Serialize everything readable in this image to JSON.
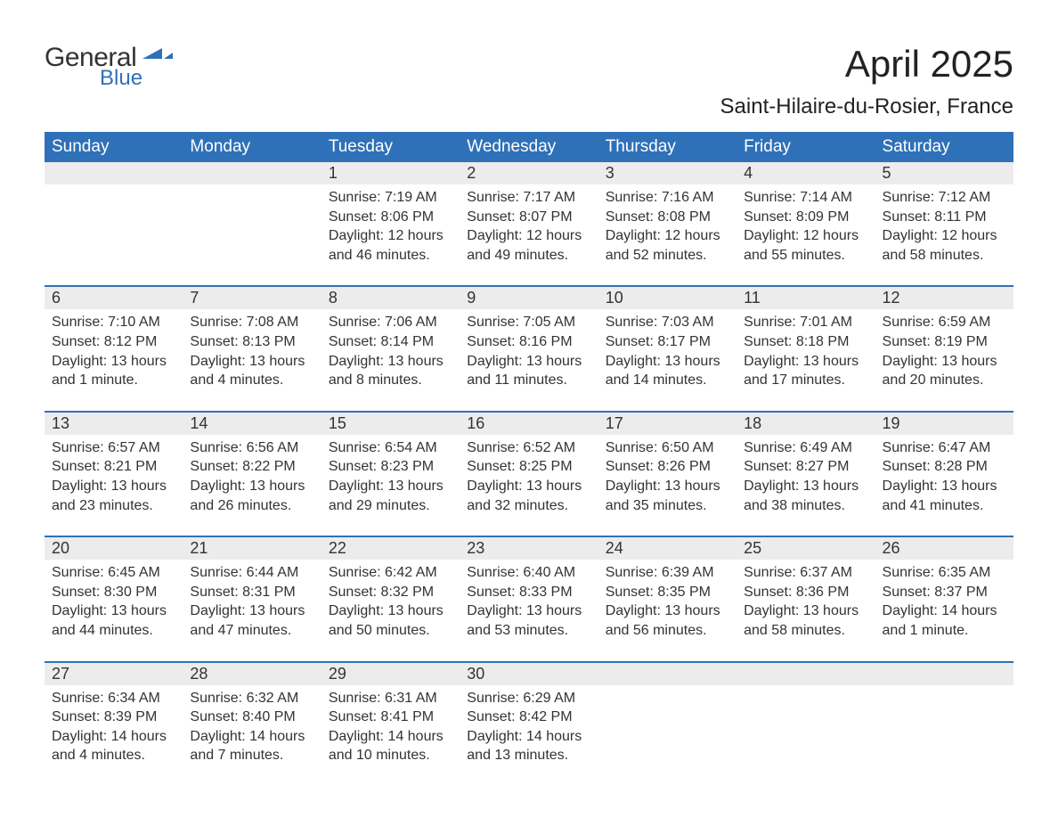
{
  "brand": {
    "general": "General",
    "blue": "Blue",
    "accent": "#2f71b8"
  },
  "title": "April 2025",
  "location": "Saint-Hilaire-du-Rosier, France",
  "calendar": {
    "header_bg": "#2f71b8",
    "header_fg": "#ffffff",
    "daynum_bg": "#ececec",
    "sep_color": "#2f71b8",
    "text_color": "#333333",
    "fontsize_header": 19,
    "fontsize_daynum": 18,
    "fontsize_info": 16,
    "columns": [
      "Sunday",
      "Monday",
      "Tuesday",
      "Wednesday",
      "Thursday",
      "Friday",
      "Saturday"
    ],
    "weeks": [
      [
        null,
        null,
        {
          "n": "1",
          "sunrise": "7:19 AM",
          "sunset": "8:06 PM",
          "daylight": "12 hours and 46 minutes."
        },
        {
          "n": "2",
          "sunrise": "7:17 AM",
          "sunset": "8:07 PM",
          "daylight": "12 hours and 49 minutes."
        },
        {
          "n": "3",
          "sunrise": "7:16 AM",
          "sunset": "8:08 PM",
          "daylight": "12 hours and 52 minutes."
        },
        {
          "n": "4",
          "sunrise": "7:14 AM",
          "sunset": "8:09 PM",
          "daylight": "12 hours and 55 minutes."
        },
        {
          "n": "5",
          "sunrise": "7:12 AM",
          "sunset": "8:11 PM",
          "daylight": "12 hours and 58 minutes."
        }
      ],
      [
        {
          "n": "6",
          "sunrise": "7:10 AM",
          "sunset": "8:12 PM",
          "daylight": "13 hours and 1 minute."
        },
        {
          "n": "7",
          "sunrise": "7:08 AM",
          "sunset": "8:13 PM",
          "daylight": "13 hours and 4 minutes."
        },
        {
          "n": "8",
          "sunrise": "7:06 AM",
          "sunset": "8:14 PM",
          "daylight": "13 hours and 8 minutes."
        },
        {
          "n": "9",
          "sunrise": "7:05 AM",
          "sunset": "8:16 PM",
          "daylight": "13 hours and 11 minutes."
        },
        {
          "n": "10",
          "sunrise": "7:03 AM",
          "sunset": "8:17 PM",
          "daylight": "13 hours and 14 minutes."
        },
        {
          "n": "11",
          "sunrise": "7:01 AM",
          "sunset": "8:18 PM",
          "daylight": "13 hours and 17 minutes."
        },
        {
          "n": "12",
          "sunrise": "6:59 AM",
          "sunset": "8:19 PM",
          "daylight": "13 hours and 20 minutes."
        }
      ],
      [
        {
          "n": "13",
          "sunrise": "6:57 AM",
          "sunset": "8:21 PM",
          "daylight": "13 hours and 23 minutes."
        },
        {
          "n": "14",
          "sunrise": "6:56 AM",
          "sunset": "8:22 PM",
          "daylight": "13 hours and 26 minutes."
        },
        {
          "n": "15",
          "sunrise": "6:54 AM",
          "sunset": "8:23 PM",
          "daylight": "13 hours and 29 minutes."
        },
        {
          "n": "16",
          "sunrise": "6:52 AM",
          "sunset": "8:25 PM",
          "daylight": "13 hours and 32 minutes."
        },
        {
          "n": "17",
          "sunrise": "6:50 AM",
          "sunset": "8:26 PM",
          "daylight": "13 hours and 35 minutes."
        },
        {
          "n": "18",
          "sunrise": "6:49 AM",
          "sunset": "8:27 PM",
          "daylight": "13 hours and 38 minutes."
        },
        {
          "n": "19",
          "sunrise": "6:47 AM",
          "sunset": "8:28 PM",
          "daylight": "13 hours and 41 minutes."
        }
      ],
      [
        {
          "n": "20",
          "sunrise": "6:45 AM",
          "sunset": "8:30 PM",
          "daylight": "13 hours and 44 minutes."
        },
        {
          "n": "21",
          "sunrise": "6:44 AM",
          "sunset": "8:31 PM",
          "daylight": "13 hours and 47 minutes."
        },
        {
          "n": "22",
          "sunrise": "6:42 AM",
          "sunset": "8:32 PM",
          "daylight": "13 hours and 50 minutes."
        },
        {
          "n": "23",
          "sunrise": "6:40 AM",
          "sunset": "8:33 PM",
          "daylight": "13 hours and 53 minutes."
        },
        {
          "n": "24",
          "sunrise": "6:39 AM",
          "sunset": "8:35 PM",
          "daylight": "13 hours and 56 minutes."
        },
        {
          "n": "25",
          "sunrise": "6:37 AM",
          "sunset": "8:36 PM",
          "daylight": "13 hours and 58 minutes."
        },
        {
          "n": "26",
          "sunrise": "6:35 AM",
          "sunset": "8:37 PM",
          "daylight": "14 hours and 1 minute."
        }
      ],
      [
        {
          "n": "27",
          "sunrise": "6:34 AM",
          "sunset": "8:39 PM",
          "daylight": "14 hours and 4 minutes."
        },
        {
          "n": "28",
          "sunrise": "6:32 AM",
          "sunset": "8:40 PM",
          "daylight": "14 hours and 7 minutes."
        },
        {
          "n": "29",
          "sunrise": "6:31 AM",
          "sunset": "8:41 PM",
          "daylight": "14 hours and 10 minutes."
        },
        {
          "n": "30",
          "sunrise": "6:29 AM",
          "sunset": "8:42 PM",
          "daylight": "14 hours and 13 minutes."
        },
        null,
        null,
        null
      ]
    ],
    "labels": {
      "sunrise": "Sunrise: ",
      "sunset": "Sunset: ",
      "daylight": "Daylight: "
    }
  }
}
